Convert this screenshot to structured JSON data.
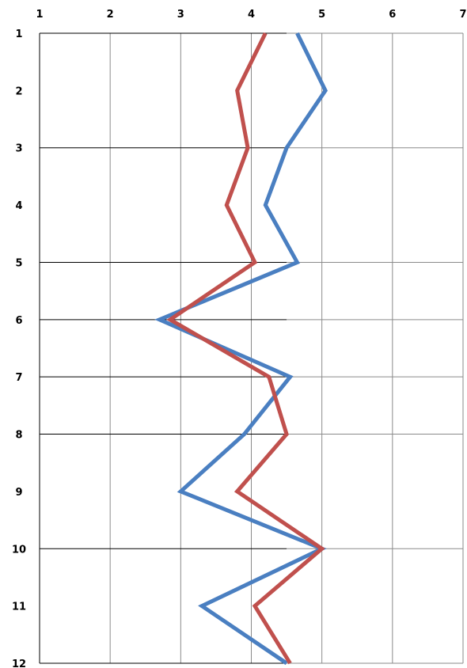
{
  "chart_data": {
    "type": "line",
    "orientation": "vertical",
    "title": "",
    "xlabel": "",
    "ylabel": "",
    "xlim": [
      1,
      7
    ],
    "ylim": [
      1,
      12
    ],
    "x_axis_position": "top",
    "y_axis_inverted": true,
    "x_ticks": [
      "1",
      "2",
      "3",
      "4",
      "5",
      "6",
      "7"
    ],
    "y_ticks": [
      "1",
      "2",
      "3",
      "4",
      "5",
      "6",
      "7",
      "8",
      "9",
      "10",
      "11",
      "12"
    ],
    "y_values": [
      1,
      2,
      3,
      4,
      5,
      6,
      7,
      8,
      9,
      10,
      11,
      12
    ],
    "grid": {
      "vertical": true,
      "horizontal_rows": [
        1,
        3,
        5,
        6,
        7,
        8,
        10,
        12
      ]
    },
    "legend": "none",
    "series": [
      {
        "color": "#4A7FC1",
        "x": [
          4.65,
          5.05,
          4.5,
          4.2,
          4.65,
          2.7,
          4.55,
          3.9,
          3.0,
          5.0,
          3.3,
          4.5
        ]
      },
      {
        "color": "#C0504D",
        "x": [
          4.2,
          3.8,
          3.95,
          3.65,
          4.05,
          2.85,
          4.25,
          4.5,
          3.8,
          5.0,
          4.05,
          4.55
        ]
      }
    ]
  }
}
